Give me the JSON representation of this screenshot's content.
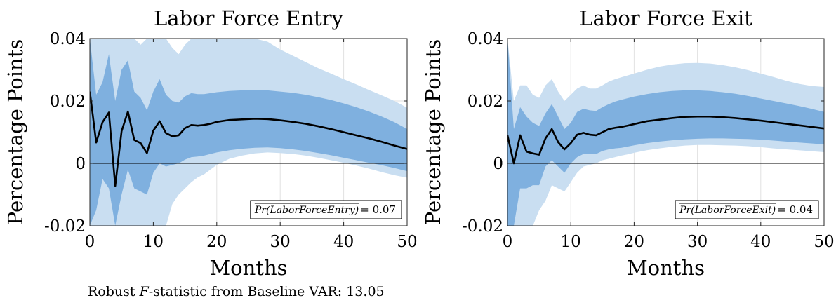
{
  "footer": {
    "prefix": "Robust ",
    "F": "F",
    "suffix": "-statistic from Baseline VAR: 13.05"
  },
  "colors": {
    "band_outer": "#c9def1",
    "band_inner": "#7fb0df",
    "line": "#000000",
    "zero": "#000000",
    "grid": "#e2e2e2"
  },
  "chart_data": [
    {
      "type": "area",
      "title": "Labor Force Entry",
      "xlabel": "Months",
      "ylabel": "Percentage Points",
      "xlim": [
        0,
        50
      ],
      "ylim": [
        -0.02,
        0.04
      ],
      "xticks": [
        0,
        10,
        20,
        30,
        40,
        50
      ],
      "yticks": [
        -0.02,
        0,
        0.02,
        0.04
      ],
      "ytick_labels": [
        "-0.02",
        "0",
        "0.02",
        "0.04"
      ],
      "grid": true,
      "annotation": "Pr(LaborForceEntry)",
      "annotation_value": "= 0.07",
      "annotation_position": "bottom-right",
      "x": [
        0,
        1,
        2,
        3,
        4,
        5,
        6,
        7,
        8,
        9,
        10,
        11,
        12,
        13,
        14,
        15,
        16,
        17,
        18,
        19,
        20,
        22,
        24,
        26,
        28,
        30,
        32,
        34,
        36,
        38,
        40,
        42,
        44,
        46,
        48,
        50
      ],
      "series": [
        {
          "name": "",
          "role": "point_estimate",
          "values": [
            0.023,
            0.0067,
            0.0132,
            0.0163,
            -0.0072,
            0.0103,
            0.0166,
            0.0075,
            0.0065,
            0.0033,
            0.0105,
            0.0135,
            0.0097,
            0.0087,
            0.009,
            0.0113,
            0.0123,
            0.0121,
            0.0123,
            0.0127,
            0.0133,
            0.0139,
            0.0141,
            0.0143,
            0.0142,
            0.0138,
            0.0133,
            0.0127,
            0.0119,
            0.011,
            0.01,
            0.009,
            0.008,
            0.0069,
            0.0057,
            0.0046
          ]
        },
        {
          "name": "",
          "role": "inner_band_upper",
          "values": [
            0.04,
            0.022,
            0.026,
            0.035,
            0.02,
            0.03,
            0.033,
            0.023,
            0.021,
            0.017,
            0.023,
            0.027,
            0.022,
            0.02,
            0.0195,
            0.0215,
            0.0225,
            0.0222,
            0.0222,
            0.0225,
            0.0228,
            0.0232,
            0.0234,
            0.0235,
            0.0234,
            0.023,
            0.0226,
            0.022,
            0.0212,
            0.0203,
            0.0192,
            0.018,
            0.0166,
            0.015,
            0.0132,
            0.011
          ]
        },
        {
          "name": "",
          "role": "inner_band_lower",
          "values": [
            -0.02,
            -0.015,
            -0.005,
            -0.008,
            -0.02,
            -0.01,
            -0.002,
            -0.008,
            -0.009,
            -0.01,
            -0.003,
            0.0,
            -0.001,
            -0.0005,
            0.0,
            0.0012,
            0.002,
            0.0022,
            0.0025,
            0.003,
            0.0035,
            0.0042,
            0.0047,
            0.005,
            0.0051,
            0.0049,
            0.0045,
            0.004,
            0.0033,
            0.0026,
            0.0018,
            0.001,
            0.0002,
            -0.0006,
            -0.0015,
            -0.0025
          ]
        },
        {
          "name": "",
          "role": "outer_band_upper",
          "values": [
            0.04,
            0.04,
            0.04,
            0.04,
            0.04,
            0.04,
            0.04,
            0.04,
            0.038,
            0.04,
            0.04,
            0.04,
            0.04,
            0.037,
            0.035,
            0.038,
            0.04,
            0.04,
            0.04,
            0.04,
            0.04,
            0.04,
            0.04,
            0.04,
            0.039,
            0.0365,
            0.0345,
            0.0325,
            0.0305,
            0.0288,
            0.027,
            0.0253,
            0.0235,
            0.0218,
            0.02,
            0.0178
          ]
        },
        {
          "name": "",
          "role": "outer_band_lower",
          "values": [
            -0.02,
            -0.02,
            -0.02,
            -0.02,
            -0.02,
            -0.02,
            -0.02,
            -0.02,
            -0.02,
            -0.02,
            -0.02,
            -0.02,
            -0.02,
            -0.013,
            -0.01,
            -0.008,
            -0.006,
            -0.0045,
            -0.0035,
            -0.002,
            -0.0005,
            0.0015,
            0.0025,
            0.0032,
            0.0035,
            0.0033,
            0.003,
            0.0025,
            0.0018,
            0.001,
            0.0002,
            -0.0007,
            -0.0017,
            -0.0028,
            -0.0038,
            -0.0046
          ]
        }
      ]
    },
    {
      "type": "area",
      "title": "Labor Force Exit",
      "xlabel": "Months",
      "ylabel": "Percentage Points",
      "xlim": [
        0,
        50
      ],
      "ylim": [
        -0.02,
        0.04
      ],
      "xticks": [
        0,
        10,
        20,
        30,
        40,
        50
      ],
      "yticks": [
        -0.02,
        0,
        0.02,
        0.04
      ],
      "ytick_labels": [
        "-0.02",
        "0",
        "0.02",
        "0.04"
      ],
      "grid": true,
      "annotation": "Pr(LaborForceExit)",
      "annotation_value": "= 0.04",
      "annotation_position": "bottom-right",
      "x": [
        0,
        1,
        2,
        3,
        4,
        5,
        6,
        7,
        8,
        9,
        10,
        11,
        12,
        13,
        14,
        15,
        16,
        17,
        18,
        19,
        20,
        22,
        24,
        26,
        28,
        30,
        32,
        34,
        36,
        38,
        40,
        42,
        44,
        46,
        48,
        50
      ],
      "series": [
        {
          "name": "",
          "role": "point_estimate",
          "values": [
            0.009,
            0.0,
            0.009,
            0.0038,
            0.0032,
            0.0028,
            0.008,
            0.011,
            0.0068,
            0.0045,
            0.0065,
            0.0092,
            0.0098,
            0.0092,
            0.009,
            0.01,
            0.011,
            0.0114,
            0.0117,
            0.0121,
            0.0126,
            0.0135,
            0.014,
            0.0145,
            0.0149,
            0.015,
            0.015,
            0.0148,
            0.0145,
            0.0141,
            0.0137,
            0.0132,
            0.0127,
            0.0122,
            0.0117,
            0.0112
          ]
        },
        {
          "name": "",
          "role": "inner_band_upper",
          "values": [
            0.04,
            0.011,
            0.018,
            0.015,
            0.013,
            0.012,
            0.016,
            0.019,
            0.015,
            0.011,
            0.013,
            0.0165,
            0.0175,
            0.017,
            0.0168,
            0.018,
            0.019,
            0.0198,
            0.0204,
            0.0209,
            0.0214,
            0.0222,
            0.0228,
            0.0232,
            0.0234,
            0.0234,
            0.0232,
            0.0228,
            0.0223,
            0.0216,
            0.0208,
            0.02,
            0.0192,
            0.0184,
            0.0175,
            0.0165
          ]
        },
        {
          "name": "",
          "role": "inner_band_lower",
          "values": [
            -0.02,
            -0.02,
            -0.008,
            -0.008,
            -0.007,
            -0.007,
            -0.001,
            0.001,
            -0.001,
            -0.003,
            0.0,
            0.002,
            0.003,
            0.003,
            0.003,
            0.004,
            0.0045,
            0.0048,
            0.005,
            0.0054,
            0.0058,
            0.0065,
            0.007,
            0.0074,
            0.0077,
            0.0079,
            0.008,
            0.008,
            0.0079,
            0.0078,
            0.0076,
            0.0073,
            0.007,
            0.0067,
            0.0064,
            0.0061
          ]
        },
        {
          "name": "",
          "role": "outer_band_upper",
          "values": [
            0.04,
            0.02,
            0.025,
            0.025,
            0.022,
            0.021,
            0.025,
            0.027,
            0.023,
            0.02,
            0.022,
            0.024,
            0.025,
            0.024,
            0.024,
            0.025,
            0.0262,
            0.027,
            0.0276,
            0.0282,
            0.0288,
            0.03,
            0.031,
            0.0317,
            0.0321,
            0.0322,
            0.032,
            0.0315,
            0.0308,
            0.0299,
            0.0288,
            0.0277,
            0.0265,
            0.0255,
            0.0248,
            0.0245
          ]
        },
        {
          "name": "",
          "role": "outer_band_lower",
          "values": [
            -0.02,
            -0.02,
            -0.02,
            -0.02,
            -0.02,
            -0.015,
            -0.012,
            -0.007,
            -0.008,
            -0.009,
            -0.006,
            -0.003,
            -0.001,
            -0.0005,
            0.0,
            0.001,
            0.0015,
            0.002,
            0.0025,
            0.0029,
            0.0034,
            0.0042,
            0.0048,
            0.0053,
            0.0057,
            0.0059,
            0.0059,
            0.0058,
            0.0057,
            0.0055,
            0.0052,
            0.0048,
            0.0045,
            0.0042,
            0.0039,
            0.0036
          ]
        }
      ]
    }
  ]
}
